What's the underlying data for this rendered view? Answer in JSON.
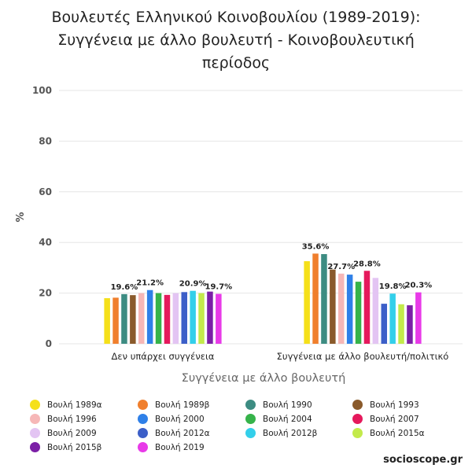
{
  "chart_data": {
    "type": "bar",
    "title_lines": [
      "Βουλευτές Ελληνικού Κοινοβουλίου (1989-2019):",
      "Συγγένεια με άλλο βουλευτή - Κοινοβουλευτική",
      "περίοδος"
    ],
    "xlabel": "Συγγένεια με άλλο βουλευτή",
    "ylabel": "%",
    "ylim": [
      0,
      100
    ],
    "yticks": [
      0,
      20,
      40,
      60,
      80,
      100
    ],
    "grid": true,
    "legend_position": "bottom",
    "categories": [
      "Δεν υπάρχει συγγένεια",
      "Συγγένεια με άλλο βουλευτή/πολιτικό"
    ],
    "series": [
      {
        "name": "Βουλή 1989α",
        "color": "#f5e01a",
        "values": [
          18.0,
          32.6
        ]
      },
      {
        "name": "Βουλή 1989β",
        "color": "#f07f2d",
        "values": [
          18.2,
          35.6
        ]
      },
      {
        "name": "Βουλή 1990",
        "color": "#3d8c82",
        "values": [
          19.6,
          35.4
        ]
      },
      {
        "name": "Βουλή 1993",
        "color": "#8a5a2b",
        "values": [
          19.2,
          29.3
        ]
      },
      {
        "name": "Βουλή 1996",
        "color": "#f6b7b7",
        "values": [
          20.0,
          27.7
        ]
      },
      {
        "name": "Βουλή 2000",
        "color": "#2f80e8",
        "values": [
          21.2,
          27.3
        ]
      },
      {
        "name": "Βουλή 2004",
        "color": "#36b34a",
        "values": [
          20.0,
          24.5
        ]
      },
      {
        "name": "Βουλή 2007",
        "color": "#e5195c",
        "values": [
          19.3,
          28.8
        ]
      },
      {
        "name": "Βουλή 2009",
        "color": "#e3c4f3",
        "values": [
          20.0,
          26.0
        ]
      },
      {
        "name": "Βουλή 2012α",
        "color": "#3c5fc8",
        "values": [
          20.4,
          15.8
        ]
      },
      {
        "name": "Βουλή 2012β",
        "color": "#33cfea",
        "values": [
          20.9,
          19.8
        ]
      },
      {
        "name": "Βουλή 2015α",
        "color": "#c3ea4b",
        "values": [
          20.0,
          15.6
        ]
      },
      {
        "name": "Βουλή 2015β",
        "color": "#7b1fa6",
        "values": [
          20.6,
          15.2
        ]
      },
      {
        "name": "Βουλή 2019",
        "color": "#e83ae8",
        "values": [
          19.7,
          20.3
        ]
      }
    ],
    "data_labels": [
      {
        "category": 0,
        "series": 2,
        "text": "19.6%"
      },
      {
        "category": 0,
        "series": 5,
        "text": "21.2%"
      },
      {
        "category": 0,
        "series": 10,
        "text": "20.9%"
      },
      {
        "category": 0,
        "series": 13,
        "text": "19.7%"
      },
      {
        "category": 1,
        "series": 1,
        "text": "35.6%"
      },
      {
        "category": 1,
        "series": 4,
        "text": "27.7%"
      },
      {
        "category": 1,
        "series": 7,
        "text": "28.8%"
      },
      {
        "category": 1,
        "series": 10,
        "text": "19.8%"
      },
      {
        "category": 1,
        "series": 13,
        "text": "20.3%"
      }
    ]
  },
  "brand": "socioscope.gr"
}
